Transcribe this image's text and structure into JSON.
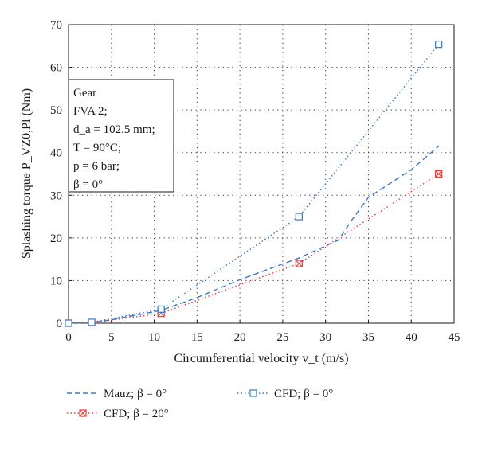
{
  "chart_data": {
    "type": "line",
    "title": "",
    "xlabel": "Circumferential velocity v_t (m/s)",
    "ylabel": "Splashing torque P_VZ0,Pl (Nm)",
    "xlim": [
      0,
      45
    ],
    "ylim": [
      0,
      70
    ],
    "xticks": [
      "0",
      "5",
      "10",
      "15",
      "20",
      "25",
      "30",
      "35",
      "40",
      "45"
    ],
    "yticks": [
      "0",
      "10",
      "20",
      "30",
      "40",
      "50",
      "60",
      "70"
    ],
    "grid": true,
    "legend_position": "bottom",
    "series": [
      {
        "name": "Mauz; β = 0°",
        "color": "#3a78c9",
        "line_style": "dashed",
        "marker": "none",
        "x": [
          0,
          2.7,
          5,
          10.8,
          15,
          20,
          26.9,
          31.5,
          33,
          35,
          40,
          43.2
        ],
        "y": [
          0,
          0.2,
          0.8,
          3.0,
          6.0,
          10.2,
          15.3,
          19.5,
          24.0,
          29.5,
          36.0,
          41.5
        ]
      },
      {
        "name": "CFD; β = 20°",
        "color": "#e53a3a",
        "line_style": "dotted",
        "marker": "square-x",
        "x": [
          0,
          2.7,
          10.8,
          26.9,
          43.2
        ],
        "y": [
          0,
          0.1,
          2.3,
          14.0,
          35.0
        ],
        "marker_x": [
          0,
          2.7,
          10.8,
          26.9,
          43.2
        ],
        "marker_y": [
          0,
          0.1,
          2.3,
          14.0,
          35.0
        ]
      },
      {
        "name": "CFD; β = 0°",
        "color": "#3a78c9",
        "line_style": "dotted",
        "marker": "square",
        "x": [
          0,
          2.7,
          10.8,
          26.9,
          43.2
        ],
        "y": [
          0,
          0.2,
          3.3,
          25.0,
          65.4
        ],
        "marker_x": [
          0,
          2.7,
          10.8,
          26.9,
          43.2
        ],
        "marker_y": [
          0,
          0.2,
          3.3,
          25.0,
          65.4
        ]
      }
    ],
    "annotation": {
      "lines": [
        {
          "text": "Gear"
        },
        {
          "text": "FVA 2;"
        },
        {
          "text": "d_a = 102.5 mm;"
        },
        {
          "text": "T = 90°C;"
        },
        {
          "text": "p = 6 bar;"
        },
        {
          "text": "β = 0°"
        }
      ]
    }
  }
}
